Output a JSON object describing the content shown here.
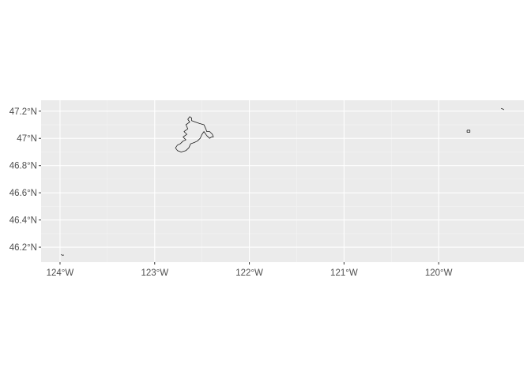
{
  "map": {
    "colors": {
      "panel": "#ebebeb",
      "grid": "#ffffff",
      "outline": "#1a1a1a",
      "label": "#4d4d4d"
    },
    "lon_range": [
      -124.2,
      -119.1
    ],
    "lat_range": [
      46.09,
      47.28
    ],
    "lon_ticks": [
      -124,
      -123,
      -122,
      -121,
      -120
    ],
    "lat_ticks": [
      46.2,
      46.4,
      46.6,
      46.8,
      47.0,
      47.2
    ],
    "x_tick_labels": [
      "124°W",
      "123°W",
      "122°W",
      "121°W",
      "120°W"
    ],
    "y_tick_labels": [
      "46.2°N",
      "46.4°N",
      "46.6°N",
      "46.8°N",
      "47°N",
      "47.2°N"
    ],
    "features": [
      {
        "name": "main-polygon",
        "coords": [
          [
            -122.63,
            47.16
          ],
          [
            -122.61,
            47.15
          ],
          [
            -122.61,
            47.13
          ],
          [
            -122.57,
            47.12
          ],
          [
            -122.53,
            47.11
          ],
          [
            -122.48,
            47.1
          ],
          [
            -122.46,
            47.07
          ],
          [
            -122.45,
            47.05
          ],
          [
            -122.42,
            47.05
          ],
          [
            -122.39,
            47.03
          ],
          [
            -122.38,
            47.01
          ],
          [
            -122.4,
            47.01
          ],
          [
            -122.42,
            47.0
          ],
          [
            -122.45,
            47.02
          ],
          [
            -122.48,
            47.05
          ],
          [
            -122.5,
            47.03
          ],
          [
            -122.52,
            47.0
          ],
          [
            -122.55,
            46.98
          ],
          [
            -122.58,
            46.97
          ],
          [
            -122.62,
            46.96
          ],
          [
            -122.64,
            46.93
          ],
          [
            -122.67,
            46.91
          ],
          [
            -122.72,
            46.9
          ],
          [
            -122.76,
            46.91
          ],
          [
            -122.78,
            46.93
          ],
          [
            -122.76,
            46.95
          ],
          [
            -122.73,
            46.96
          ],
          [
            -122.7,
            46.98
          ],
          [
            -122.67,
            46.99
          ],
          [
            -122.7,
            47.01
          ],
          [
            -122.66,
            47.03
          ],
          [
            -122.69,
            47.05
          ],
          [
            -122.65,
            47.07
          ],
          [
            -122.67,
            47.1
          ],
          [
            -122.63,
            47.12
          ],
          [
            -122.65,
            47.14
          ],
          [
            -122.63,
            47.16
          ]
        ]
      },
      {
        "name": "small-square",
        "coords": [
          [
            -119.7,
            47.06
          ],
          [
            -119.67,
            47.06
          ],
          [
            -119.67,
            47.045
          ],
          [
            -119.7,
            47.045
          ],
          [
            -119.7,
            47.06
          ]
        ]
      },
      {
        "name": "tiny-mark-east",
        "coords": [
          [
            -119.34,
            47.22
          ],
          [
            -119.32,
            47.215
          ],
          [
            -119.31,
            47.21
          ]
        ]
      },
      {
        "name": "tiny-mark-west",
        "coords": [
          [
            -123.99,
            46.145
          ],
          [
            -123.97,
            46.14
          ],
          [
            -123.96,
            46.143
          ]
        ]
      }
    ]
  }
}
